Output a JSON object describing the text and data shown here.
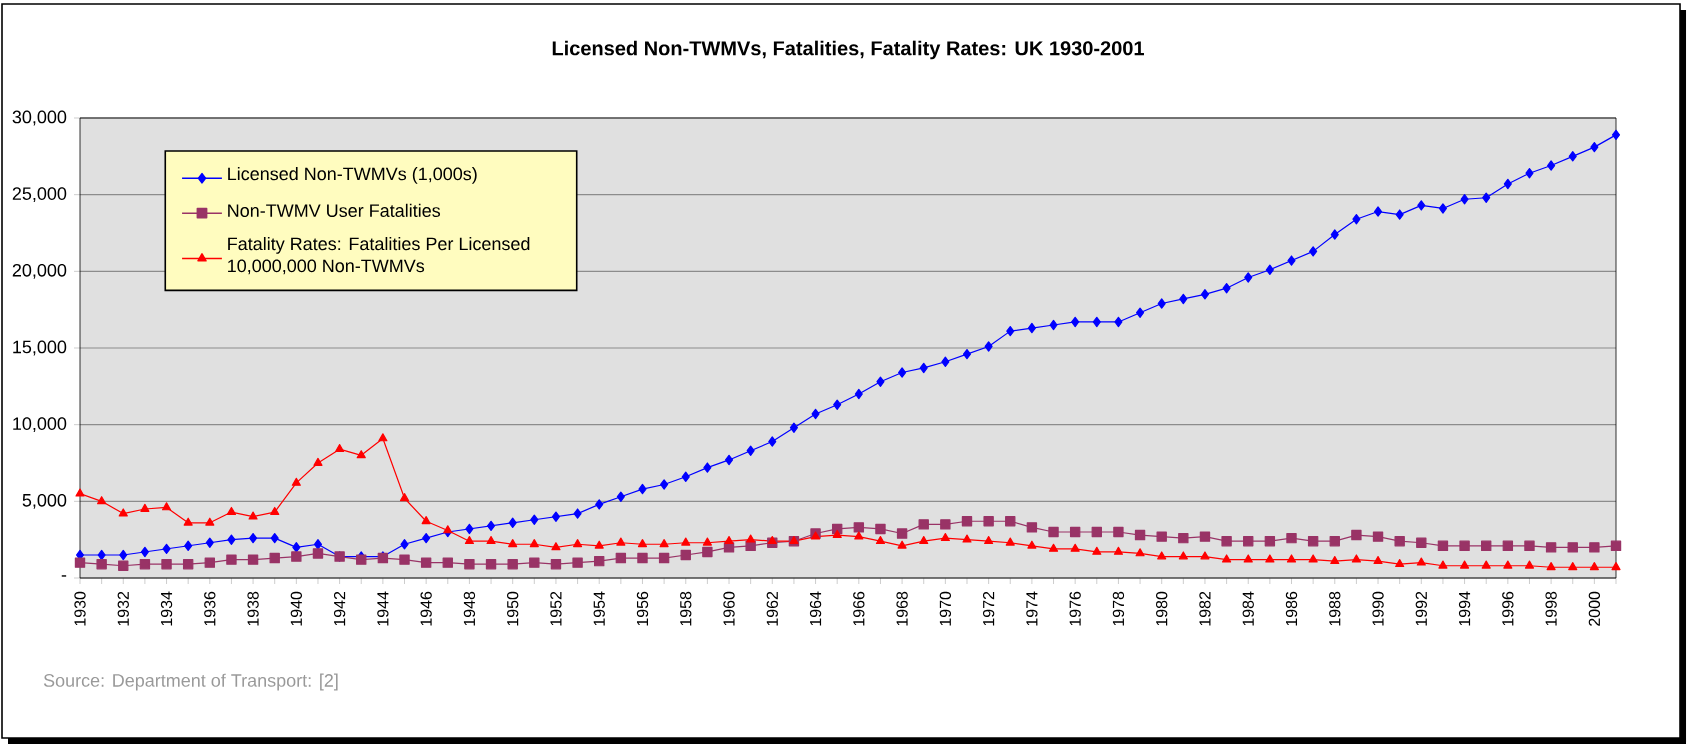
{
  "chart_data": {
    "type": "line",
    "title": "Licensed Non-TWMVs, Fatalities, Fatality Rates: UK 1930-2001",
    "categories": [
      "1930",
      null,
      "1932",
      null,
      "1934",
      null,
      "1936",
      null,
      "1938",
      null,
      "1940",
      null,
      "1942",
      null,
      "1944",
      null,
      "1946",
      null,
      "1948",
      null,
      "1950",
      null,
      "1952",
      null,
      "1954",
      null,
      "1956",
      null,
      "1958",
      null,
      "1960",
      null,
      "1962",
      null,
      "1964",
      null,
      "1966",
      null,
      "1968",
      null,
      "1970",
      null,
      "1972",
      null,
      "1974",
      null,
      "1976",
      null,
      "1978",
      null,
      "1980",
      null,
      "1982",
      null,
      "1984",
      null,
      "1986",
      null,
      "1988",
      null,
      "1990",
      null,
      "1992",
      null,
      "1994",
      null,
      "1996",
      null,
      "1998",
      null,
      "2000",
      null
    ],
    "series": [
      {
        "name": "Licensed Non-TWMVs (1,000s)",
        "color": "#0000ff",
        "marker": "diamond",
        "values": [
          1500,
          1500,
          1500,
          1700,
          1900,
          2100,
          2300,
          2500,
          2600,
          2600,
          2000,
          2200,
          1400,
          1400,
          1400,
          2200,
          2600,
          3000,
          3200,
          3400,
          3600,
          3800,
          4000,
          4200,
          4800,
          5300,
          5800,
          6100,
          6600,
          7200,
          7700,
          8300,
          8900,
          9800,
          10700,
          11300,
          12000,
          12800,
          13400,
          13700,
          14100,
          14600,
          15100,
          16100,
          16300,
          16500,
          16700,
          16700,
          16700,
          17300,
          17900,
          18200,
          18500,
          18900,
          19600,
          20100,
          20700,
          21300,
          22400,
          23400,
          23900,
          23700,
          24300,
          24100,
          24700,
          24800,
          25700,
          26400,
          26900,
          27500,
          28100,
          28900
        ]
      },
      {
        "name": "Non-TWMV User Fatalities",
        "color": "#993366",
        "marker": "square",
        "values": [
          1000,
          900,
          800,
          900,
          900,
          900,
          1000,
          1200,
          1200,
          1300,
          1400,
          1600,
          1400,
          1200,
          1300,
          1200,
          1000,
          1000,
          900,
          900,
          900,
          1000,
          900,
          1000,
          1100,
          1300,
          1300,
          1300,
          1500,
          1700,
          2000,
          2100,
          2300,
          2400,
          2900,
          3200,
          3300,
          3200,
          2900,
          3500,
          3500,
          3700,
          3700,
          3700,
          3300,
          3000,
          3000,
          3000,
          3000,
          2800,
          2700,
          2600,
          2700,
          2400,
          2400,
          2400,
          2600,
          2400,
          2400,
          2800,
          2700,
          2400,
          2300,
          2100,
          2100,
          2100,
          2100,
          2100,
          2000,
          2000,
          2000,
          2100
        ]
      },
      {
        "name": "Fatality Rates: Fatalities Per Licensed 10,000,000 Non-TWMVs",
        "color": "#ff0000",
        "marker": "triangle",
        "values": [
          5500,
          5000,
          4200,
          4500,
          4600,
          3600,
          3600,
          4300,
          4000,
          4300,
          6200,
          7500,
          8400,
          8000,
          9100,
          5200,
          3700,
          3100,
          2400,
          2400,
          2200,
          2200,
          2000,
          2200,
          2100,
          2300,
          2200,
          2200,
          2300,
          2300,
          2400,
          2500,
          2400,
          2400,
          2700,
          2800,
          2700,
          2400,
          2100,
          2400,
          2600,
          2500,
          2400,
          2300,
          2100,
          1900,
          1900,
          1700,
          1700,
          1600,
          1400,
          1400,
          1400,
          1200,
          1200,
          1200,
          1200,
          1200,
          1100,
          1200,
          1100,
          900,
          1000,
          800,
          800,
          800,
          800,
          800,
          700,
          700,
          700,
          700
        ]
      }
    ],
    "ylim": [
      0,
      30000
    ],
    "yticks": [
      {
        "value": 0,
        "label": "-"
      },
      {
        "value": 5000,
        "label": "5,000"
      },
      {
        "value": 10000,
        "label": "10,000"
      },
      {
        "value": 15000,
        "label": "15,000"
      },
      {
        "value": 20000,
        "label": "20,000"
      },
      {
        "value": 25000,
        "label": "25,000"
      },
      {
        "value": 30000,
        "label": "30,000"
      }
    ],
    "grid": "y",
    "legend": "top left",
    "annotations": [
      "Source: Department of Transport: [2]"
    ]
  }
}
